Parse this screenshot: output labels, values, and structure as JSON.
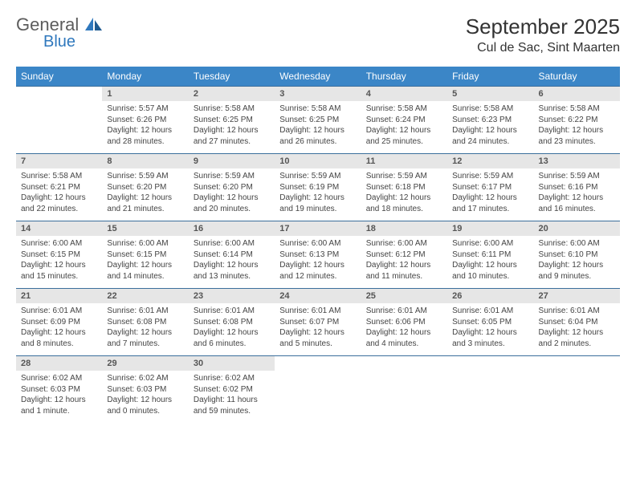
{
  "logo": {
    "text1": "General",
    "text2": "Blue"
  },
  "title": "September 2025",
  "location": "Cul de Sac, Sint Maarten",
  "colors": {
    "header_bg": "#3b86c7",
    "header_text": "#ffffff",
    "daynum_bg": "#e6e6e6",
    "rule": "#3b6f9c",
    "body_text": "#444444",
    "logo_gray": "#5c5c5c",
    "logo_blue": "#2f78bd",
    "page_bg": "#ffffff"
  },
  "typography": {
    "title_fontsize": 26,
    "location_fontsize": 16,
    "dow_fontsize": 12,
    "daynum_fontsize": 11,
    "cell_fontsize": 10
  },
  "days_of_week": [
    "Sunday",
    "Monday",
    "Tuesday",
    "Wednesday",
    "Thursday",
    "Friday",
    "Saturday"
  ],
  "weeks": [
    [
      null,
      {
        "n": "1",
        "sr": "Sunrise: 5:57 AM",
        "ss": "Sunset: 6:26 PM",
        "d1": "Daylight: 12 hours",
        "d2": "and 28 minutes."
      },
      {
        "n": "2",
        "sr": "Sunrise: 5:58 AM",
        "ss": "Sunset: 6:25 PM",
        "d1": "Daylight: 12 hours",
        "d2": "and 27 minutes."
      },
      {
        "n": "3",
        "sr": "Sunrise: 5:58 AM",
        "ss": "Sunset: 6:25 PM",
        "d1": "Daylight: 12 hours",
        "d2": "and 26 minutes."
      },
      {
        "n": "4",
        "sr": "Sunrise: 5:58 AM",
        "ss": "Sunset: 6:24 PM",
        "d1": "Daylight: 12 hours",
        "d2": "and 25 minutes."
      },
      {
        "n": "5",
        "sr": "Sunrise: 5:58 AM",
        "ss": "Sunset: 6:23 PM",
        "d1": "Daylight: 12 hours",
        "d2": "and 24 minutes."
      },
      {
        "n": "6",
        "sr": "Sunrise: 5:58 AM",
        "ss": "Sunset: 6:22 PM",
        "d1": "Daylight: 12 hours",
        "d2": "and 23 minutes."
      }
    ],
    [
      {
        "n": "7",
        "sr": "Sunrise: 5:58 AM",
        "ss": "Sunset: 6:21 PM",
        "d1": "Daylight: 12 hours",
        "d2": "and 22 minutes."
      },
      {
        "n": "8",
        "sr": "Sunrise: 5:59 AM",
        "ss": "Sunset: 6:20 PM",
        "d1": "Daylight: 12 hours",
        "d2": "and 21 minutes."
      },
      {
        "n": "9",
        "sr": "Sunrise: 5:59 AM",
        "ss": "Sunset: 6:20 PM",
        "d1": "Daylight: 12 hours",
        "d2": "and 20 minutes."
      },
      {
        "n": "10",
        "sr": "Sunrise: 5:59 AM",
        "ss": "Sunset: 6:19 PM",
        "d1": "Daylight: 12 hours",
        "d2": "and 19 minutes."
      },
      {
        "n": "11",
        "sr": "Sunrise: 5:59 AM",
        "ss": "Sunset: 6:18 PM",
        "d1": "Daylight: 12 hours",
        "d2": "and 18 minutes."
      },
      {
        "n": "12",
        "sr": "Sunrise: 5:59 AM",
        "ss": "Sunset: 6:17 PM",
        "d1": "Daylight: 12 hours",
        "d2": "and 17 minutes."
      },
      {
        "n": "13",
        "sr": "Sunrise: 5:59 AM",
        "ss": "Sunset: 6:16 PM",
        "d1": "Daylight: 12 hours",
        "d2": "and 16 minutes."
      }
    ],
    [
      {
        "n": "14",
        "sr": "Sunrise: 6:00 AM",
        "ss": "Sunset: 6:15 PM",
        "d1": "Daylight: 12 hours",
        "d2": "and 15 minutes."
      },
      {
        "n": "15",
        "sr": "Sunrise: 6:00 AM",
        "ss": "Sunset: 6:15 PM",
        "d1": "Daylight: 12 hours",
        "d2": "and 14 minutes."
      },
      {
        "n": "16",
        "sr": "Sunrise: 6:00 AM",
        "ss": "Sunset: 6:14 PM",
        "d1": "Daylight: 12 hours",
        "d2": "and 13 minutes."
      },
      {
        "n": "17",
        "sr": "Sunrise: 6:00 AM",
        "ss": "Sunset: 6:13 PM",
        "d1": "Daylight: 12 hours",
        "d2": "and 12 minutes."
      },
      {
        "n": "18",
        "sr": "Sunrise: 6:00 AM",
        "ss": "Sunset: 6:12 PM",
        "d1": "Daylight: 12 hours",
        "d2": "and 11 minutes."
      },
      {
        "n": "19",
        "sr": "Sunrise: 6:00 AM",
        "ss": "Sunset: 6:11 PM",
        "d1": "Daylight: 12 hours",
        "d2": "and 10 minutes."
      },
      {
        "n": "20",
        "sr": "Sunrise: 6:00 AM",
        "ss": "Sunset: 6:10 PM",
        "d1": "Daylight: 12 hours",
        "d2": "and 9 minutes."
      }
    ],
    [
      {
        "n": "21",
        "sr": "Sunrise: 6:01 AM",
        "ss": "Sunset: 6:09 PM",
        "d1": "Daylight: 12 hours",
        "d2": "and 8 minutes."
      },
      {
        "n": "22",
        "sr": "Sunrise: 6:01 AM",
        "ss": "Sunset: 6:08 PM",
        "d1": "Daylight: 12 hours",
        "d2": "and 7 minutes."
      },
      {
        "n": "23",
        "sr": "Sunrise: 6:01 AM",
        "ss": "Sunset: 6:08 PM",
        "d1": "Daylight: 12 hours",
        "d2": "and 6 minutes."
      },
      {
        "n": "24",
        "sr": "Sunrise: 6:01 AM",
        "ss": "Sunset: 6:07 PM",
        "d1": "Daylight: 12 hours",
        "d2": "and 5 minutes."
      },
      {
        "n": "25",
        "sr": "Sunrise: 6:01 AM",
        "ss": "Sunset: 6:06 PM",
        "d1": "Daylight: 12 hours",
        "d2": "and 4 minutes."
      },
      {
        "n": "26",
        "sr": "Sunrise: 6:01 AM",
        "ss": "Sunset: 6:05 PM",
        "d1": "Daylight: 12 hours",
        "d2": "and 3 minutes."
      },
      {
        "n": "27",
        "sr": "Sunrise: 6:01 AM",
        "ss": "Sunset: 6:04 PM",
        "d1": "Daylight: 12 hours",
        "d2": "and 2 minutes."
      }
    ],
    [
      {
        "n": "28",
        "sr": "Sunrise: 6:02 AM",
        "ss": "Sunset: 6:03 PM",
        "d1": "Daylight: 12 hours",
        "d2": "and 1 minute."
      },
      {
        "n": "29",
        "sr": "Sunrise: 6:02 AM",
        "ss": "Sunset: 6:03 PM",
        "d1": "Daylight: 12 hours",
        "d2": "and 0 minutes."
      },
      {
        "n": "30",
        "sr": "Sunrise: 6:02 AM",
        "ss": "Sunset: 6:02 PM",
        "d1": "Daylight: 11 hours",
        "d2": "and 59 minutes."
      },
      null,
      null,
      null,
      null
    ]
  ]
}
